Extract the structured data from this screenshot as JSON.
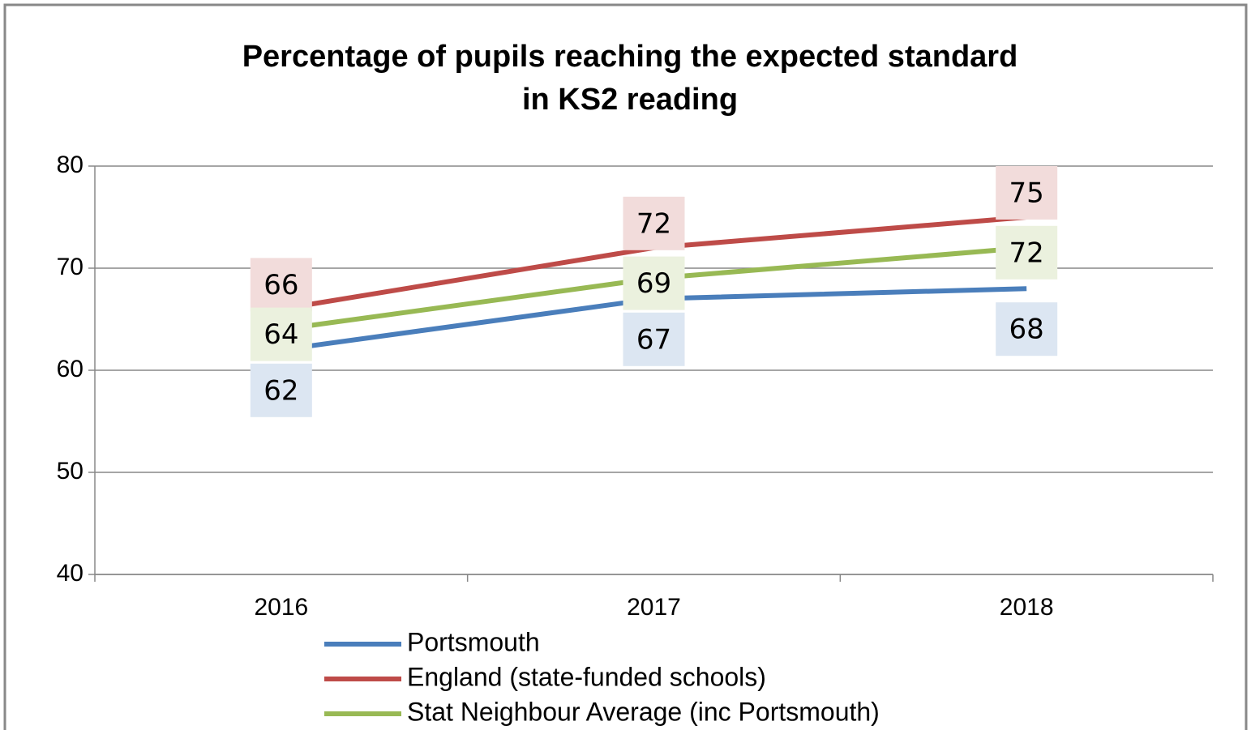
{
  "chart_data": {
    "type": "line",
    "title": [
      "Percentage of pupils reaching the expected standard",
      "in KS2 reading"
    ],
    "categories": [
      "2016",
      "2017",
      "2018"
    ],
    "series": [
      {
        "name": "Portsmouth",
        "color": "#4a7ebb",
        "values": [
          62,
          67,
          68
        ]
      },
      {
        "name": "England (state-funded schools)",
        "color": "#be4b48",
        "values": [
          66,
          72,
          75
        ]
      },
      {
        "name": "Stat Neighbour Average (inc Portsmouth)",
        "color": "#98b954",
        "values": [
          64,
          69,
          72
        ]
      }
    ],
    "ylim": [
      40,
      80
    ],
    "yticks": [
      40,
      50,
      60,
      70,
      80
    ],
    "grid": true
  }
}
